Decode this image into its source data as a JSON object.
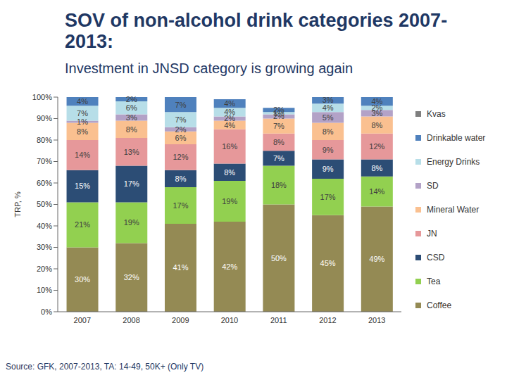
{
  "chart_data": {
    "type": "bar",
    "stacked": true,
    "title": "SOV of non-alcohol drink categories 2007-2013:",
    "subtitle": "Investment in JNSD category is growing again",
    "y_label": "TRP, %",
    "source": "Source: GFK, 2007-2013, TA: 14-49, 50K+ (Only TV)",
    "categories": [
      "2007",
      "2008",
      "2009",
      "2010",
      "2011",
      "2012",
      "2013"
    ],
    "ylim": [
      0,
      100
    ],
    "yticks": [
      {
        "value": 0,
        "label": "0%"
      },
      {
        "value": 10,
        "label": "10%"
      },
      {
        "value": 20,
        "label": "20%"
      },
      {
        "value": 30,
        "label": "30%"
      },
      {
        "value": 40,
        "label": "40%"
      },
      {
        "value": 50,
        "label": "50%"
      },
      {
        "value": 60,
        "label": "60%"
      },
      {
        "value": 70,
        "label": "70%"
      },
      {
        "value": 80,
        "label": "80%"
      },
      {
        "value": 90,
        "label": "90%"
      },
      {
        "value": 100,
        "label": "100%"
      }
    ],
    "grid": false,
    "data_labels": true,
    "legend": "right",
    "series": [
      {
        "name": "Coffee",
        "color": "#948a54",
        "values": [
          30,
          32,
          41,
          42,
          50,
          45,
          49
        ],
        "value_labels": [
          "30%",
          "32%",
          "41%",
          "42%",
          "50%",
          "45%",
          "49%"
        ]
      },
      {
        "name": "Tea",
        "color": "#92d050",
        "values": [
          21,
          19,
          17,
          19,
          18,
          17,
          14
        ],
        "value_labels": [
          "21%",
          "19%",
          "17%",
          "19%",
          "18%",
          "17%",
          "14%"
        ]
      },
      {
        "name": "CSD",
        "color": "#2c4d75",
        "values": [
          15,
          17,
          8,
          8,
          7,
          9,
          8
        ],
        "value_labels": [
          "15%",
          "17%",
          "8%",
          "8%",
          "7%",
          "9%",
          "8%"
        ]
      },
      {
        "name": "JN",
        "color": "#e6989a",
        "values": [
          14,
          13,
          12,
          16,
          8,
          9,
          12
        ],
        "value_labels": [
          "14%",
          "13%",
          "12%",
          "16%",
          "8%",
          "9%",
          "12%"
        ]
      },
      {
        "name": "Mineral Water",
        "color": "#fac090",
        "values": [
          8,
          8,
          6,
          4,
          7,
          8,
          8
        ],
        "value_labels": [
          "8%",
          "8%",
          "6%",
          "4%",
          "7%",
          "8%",
          "8%"
        ]
      },
      {
        "name": "SD",
        "color": "#b3a2c7",
        "values": [
          1,
          3,
          2,
          2,
          2,
          5,
          3
        ],
        "value_labels": [
          "1%",
          "3%",
          "2%",
          "2%",
          "2%",
          "5%",
          "3%"
        ]
      },
      {
        "name": "Energy Drinks",
        "color": "#b7dee8",
        "values": [
          7,
          6,
          7,
          4,
          1,
          4,
          2
        ],
        "value_labels": [
          "7%",
          "6%",
          "7%",
          "4%",
          "1%",
          "4%",
          "2%"
        ]
      },
      {
        "name": "Drinkable water",
        "color": "#4f81bd",
        "values": [
          4,
          2,
          7,
          4,
          2,
          3,
          4
        ],
        "value_labels": [
          "4%",
          "2%",
          "7%",
          "4%",
          "2%",
          "3%",
          "4%"
        ]
      },
      {
        "name": "Kvas",
        "color": "#7f7f7f",
        "values": [
          null,
          null,
          null,
          null,
          null,
          null,
          null
        ],
        "value_labels": [
          null,
          null,
          null,
          null,
          null,
          null,
          null
        ]
      }
    ]
  }
}
